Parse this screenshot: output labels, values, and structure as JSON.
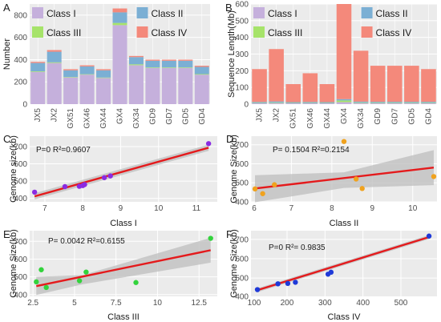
{
  "colors": {
    "class_I": "#c5b0dc",
    "class_II": "#7bafd4",
    "class_III": "#a6e36a",
    "class_IV": "#f4897b",
    "panel_bg": "#ebebeb",
    "grid": "#ffffff",
    "fit_line": "#e41a1c",
    "ci_band": "#bdbdbd",
    "point_C": "#8a2be2",
    "point_D": "#f0a21e",
    "point_E": "#32d33c",
    "point_F": "#1f3ad8"
  },
  "chart_data": [
    {
      "panel": "A",
      "type": "bar",
      "stacked": true,
      "ylabel": "Number",
      "ylim": [
        0,
        900
      ],
      "yticks": [
        "0",
        "200",
        "400",
        "600",
        "800"
      ],
      "categories": [
        "JX5",
        "JX2",
        "GX51",
        "GX46",
        "GX44",
        "GX4",
        "GX34",
        "GD9",
        "GD7",
        "GD5",
        "GD4"
      ],
      "series": [
        {
          "name": "Class I",
          "values": [
            290,
            370,
            240,
            265,
            235,
            710,
            350,
            325,
            325,
            325,
            265
          ]
        },
        {
          "name": "Class III",
          "values": [
            5,
            6,
            4,
            4,
            4,
            20,
            8,
            5,
            5,
            5,
            5
          ]
        },
        {
          "name": "Class II",
          "values": [
            75,
            95,
            60,
            70,
            65,
            95,
            65,
            60,
            60,
            60,
            65
          ]
        },
        {
          "name": "Class IV",
          "values": [
            10,
            15,
            10,
            10,
            10,
            35,
            10,
            10,
            10,
            10,
            10
          ]
        }
      ],
      "legend": [
        "Class I",
        "Class II",
        "Class III",
        "Class IV"
      ]
    },
    {
      "panel": "B",
      "type": "bar",
      "stacked": true,
      "ylabel": "Sequence Length(Mb)",
      "ylim": [
        0,
        600
      ],
      "yticks": [
        "0",
        "100",
        "200",
        "300",
        "400",
        "500",
        "600"
      ],
      "categories": [
        "JX5",
        "JX2",
        "GX51",
        "GX46",
        "GX44",
        "GX4",
        "GX34",
        "GD9",
        "GD7",
        "GD5",
        "GD4"
      ],
      "series": [
        {
          "name": "Class I",
          "values": [
            5,
            6,
            5,
            5,
            5,
            12,
            6,
            5,
            5,
            5,
            5
          ]
        },
        {
          "name": "Class III",
          "values": [
            2,
            3,
            2,
            2,
            2,
            10,
            3,
            3,
            3,
            3,
            3
          ]
        },
        {
          "name": "Class II",
          "values": [
            6,
            7,
            5,
            6,
            5,
            8,
            6,
            6,
            6,
            6,
            6
          ]
        },
        {
          "name": "Class IV",
          "values": [
            197,
            314,
            108,
            172,
            108,
            570,
            305,
            216,
            216,
            216,
            196
          ]
        }
      ],
      "legend": [
        "Class I",
        "Class II",
        "Class III",
        "Class IV"
      ]
    },
    {
      "panel": "C",
      "type": "scatter",
      "xlabel": "Class I",
      "ylabel": "Genome size(kb)",
      "xlim": [
        6.6,
        11.55
      ],
      "ylim": [
        380,
        760
      ],
      "xticks": [
        7,
        8,
        9,
        10,
        11
      ],
      "yticks": [
        400,
        500,
        600,
        700
      ],
      "annotation": "P=0  R²=0.9607",
      "points": [
        [
          6.73,
          436
        ],
        [
          7.53,
          468
        ],
        [
          7.91,
          470
        ],
        [
          8.0,
          474
        ],
        [
          8.05,
          480
        ],
        [
          8.57,
          520
        ],
        [
          8.73,
          530
        ],
        [
          11.32,
          717
        ]
      ],
      "fit": {
        "x": [
          6.73,
          11.32
        ],
        "y": [
          412,
          693
        ]
      },
      "band_half_width": 18
    },
    {
      "panel": "D",
      "type": "scatter",
      "xlabel": "Class II",
      "ylabel": "Genome Size(kb)",
      "xlim": [
        6.0,
        10.6
      ],
      "ylim": [
        400,
        745
      ],
      "xticks": [
        6,
        7,
        8,
        9,
        10
      ],
      "yticks": [
        400,
        500,
        600,
        700
      ],
      "annotation": "P= 0.1504  R²=0.2154",
      "points": [
        [
          6.1,
          468
        ],
        [
          6.29,
          443
        ],
        [
          6.58,
          490
        ],
        [
          8.3,
          717
        ],
        [
          8.6,
          520
        ],
        [
          8.75,
          470
        ],
        [
          10.52,
          533
        ]
      ],
      "fit": {
        "x": [
          6.1,
          10.52
        ],
        "y": [
          470,
          580
        ]
      },
      "band": {
        "x": [
          6.1,
          8.3,
          10.52
        ],
        "upper": [
          540,
          555,
          672
        ],
        "lower": [
          398,
          473,
          488
        ]
      }
    },
    {
      "panel": "E",
      "type": "scatter",
      "xlabel": "Class III",
      "ylabel": "Genome Size(kb)",
      "xlim": [
        2.3,
        13.6
      ],
      "ylim": [
        390,
        760
      ],
      "xticks": [
        "2.5",
        "5",
        "7.5",
        "10",
        "12.5"
      ],
      "yticks": [
        400,
        500,
        600,
        700
      ],
      "annotation": "P= 0.0042  R²=0.6155",
      "points": [
        [
          2.7,
          472
        ],
        [
          3.0,
          540
        ],
        [
          3.3,
          440
        ],
        [
          5.3,
          478
        ],
        [
          5.7,
          527
        ],
        [
          8.7,
          468
        ],
        [
          13.2,
          717
        ]
      ],
      "fit": {
        "x": [
          2.7,
          13.2
        ],
        "y": [
          448,
          650
        ]
      },
      "band": {
        "x": [
          2.7,
          5.5,
          13.2
        ],
        "upper": [
          500,
          510,
          720
        ],
        "lower": [
          398,
          458,
          580
        ]
      }
    },
    {
      "panel": "F",
      "type": "scatter",
      "xlabel": "Class IV",
      "ylabel": "Genome Size(kb)",
      "xlim": [
        105,
        595
      ],
      "ylim": [
        405,
        745
      ],
      "xticks": [
        100,
        200,
        300,
        400,
        500
      ],
      "yticks": [
        400,
        500,
        600,
        700
      ],
      "annotation": "P=0  R²= 0.9835",
      "points": [
        [
          122,
          440
        ],
        [
          176,
          470
        ],
        [
          202,
          472
        ],
        [
          222,
          478
        ],
        [
          308,
          520
        ],
        [
          316,
          530
        ],
        [
          574,
          717
        ]
      ],
      "fit": {
        "x": [
          122,
          574
        ],
        "y": [
          437,
          712
        ]
      },
      "band_half_width": 10
    }
  ]
}
